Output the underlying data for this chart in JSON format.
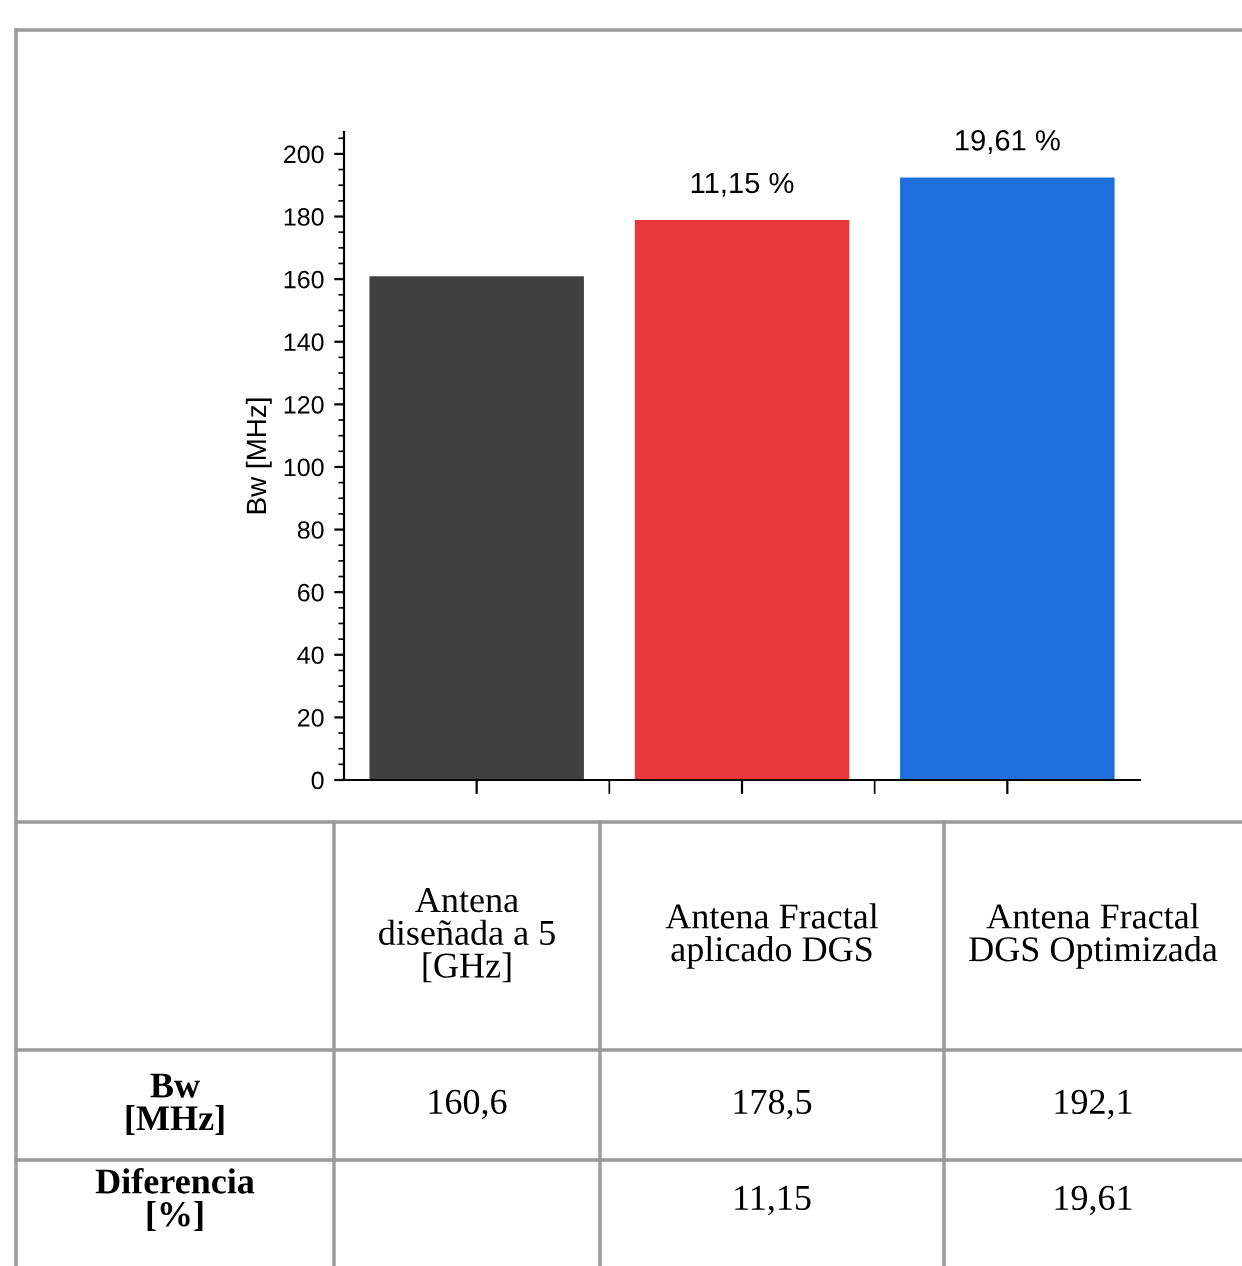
{
  "chart_data": {
    "type": "bar",
    "ylabel": "Bw [MHz]",
    "categories": [
      "Antena diseñada a 5 [GHz]",
      "Antena Fractal aplicado DGS",
      "Antena Fractal DGS Optimizada"
    ],
    "values": [
      160.6,
      178.5,
      192.1
    ],
    "colors": [
      "#404040",
      "#e8383a",
      "#1e6fdc"
    ],
    "value_labels": [
      "160,6",
      "178,5",
      "192,1"
    ],
    "ylim": [
      0,
      207
    ],
    "yticks": [
      0,
      20,
      40,
      60,
      80,
      100,
      120,
      140,
      160,
      180,
      200
    ],
    "grid": false,
    "tick_labels": "y",
    "annotations": [
      {
        "text": "11,15 %",
        "x": "Antena Fractal aplicado DGS",
        "y": 178.5
      },
      {
        "text": "19,61 %",
        "x": "Antena Fractal DGS Optimizada",
        "y": 192.1
      },
      "Bw [MHz]",
      "Diferencia [%]",
      "11,15",
      "19,61"
    ]
  }
}
